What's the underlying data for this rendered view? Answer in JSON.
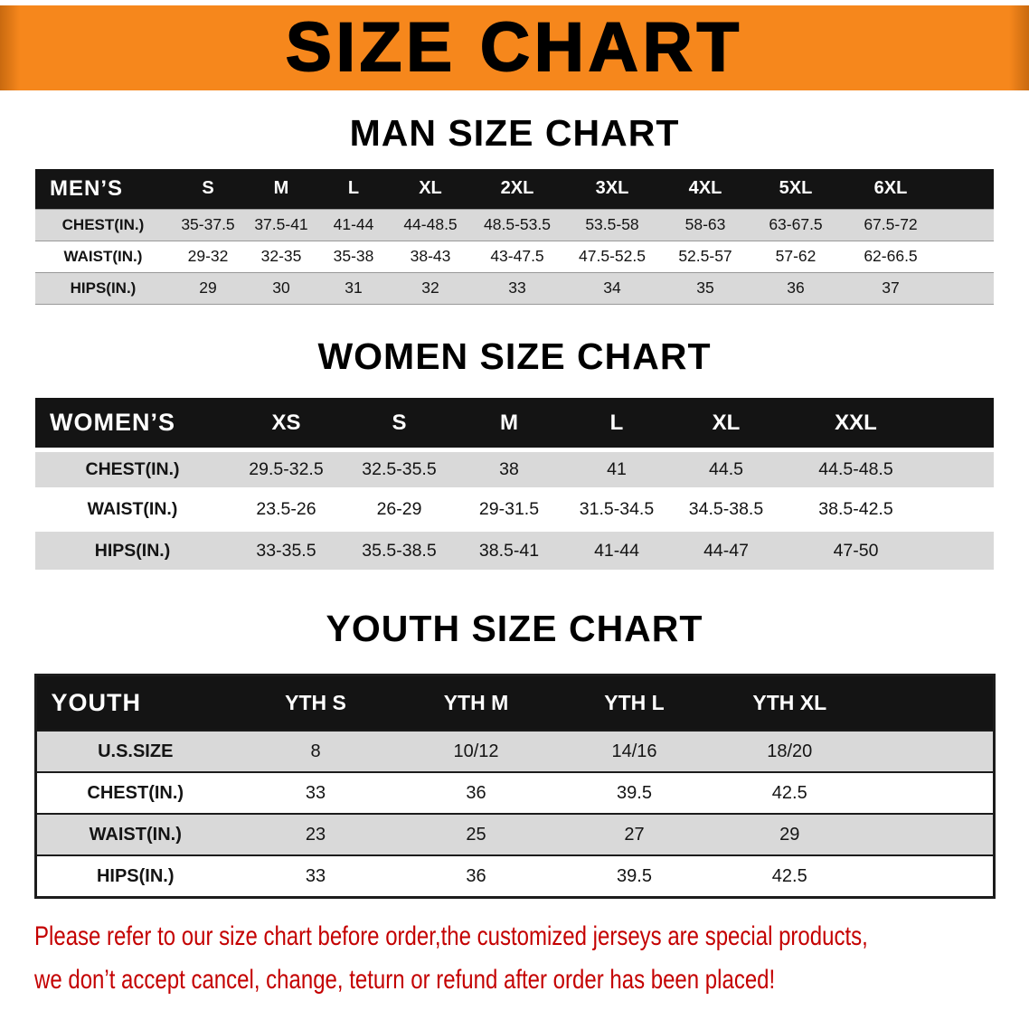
{
  "banner": {
    "title": "SIZE CHART"
  },
  "colors": {
    "banner_bg": "#F6871C",
    "header_bg": "#141414",
    "row_gray": "#D9D9D9",
    "disclaimer_red": "#C40000"
  },
  "tables": {
    "men": {
      "title": "MAN SIZE CHART",
      "header": [
        "MEN’S",
        "S",
        "M",
        "L",
        "XL",
        "2XL",
        "3XL",
        "4XL",
        "5XL",
        "6XL"
      ],
      "rows": [
        [
          "CHEST(IN.)",
          "35-37.5",
          "37.5-41",
          "41-44",
          "44-48.5",
          "48.5-53.5",
          "53.5-58",
          "58-63",
          "63-67.5",
          "67.5-72"
        ],
        [
          "WAIST(IN.)",
          "29-32",
          "32-35",
          "35-38",
          "38-43",
          "43-47.5",
          "47.5-52.5",
          "52.5-57",
          "57-62",
          "62-66.5"
        ],
        [
          "HIPS(IN.)",
          "29",
          "30",
          "31",
          "32",
          "33",
          "34",
          "35",
          "36",
          "37"
        ]
      ]
    },
    "women": {
      "title": "WOMEN SIZE CHART",
      "header": [
        "WOMEN’S",
        "XS",
        "S",
        "M",
        "L",
        "XL",
        "XXL"
      ],
      "rows": [
        [
          "CHEST(IN.)",
          "29.5-32.5",
          "32.5-35.5",
          "38",
          "41",
          "44.5",
          "44.5-48.5"
        ],
        [
          "WAIST(IN.)",
          "23.5-26",
          "26-29",
          "29-31.5",
          "31.5-34.5",
          "34.5-38.5",
          "38.5-42.5"
        ],
        [
          "HIPS(IN.)",
          "33-35.5",
          "35.5-38.5",
          "38.5-41",
          "41-44",
          "44-47",
          "47-50"
        ]
      ]
    },
    "youth": {
      "title": "YOUTH SIZE CHART",
      "header": [
        "YOUTH",
        "YTH S",
        "YTH M",
        "YTH L",
        "YTH XL"
      ],
      "rows": [
        [
          "U.S.SIZE",
          "8",
          "10/12",
          "14/16",
          "18/20"
        ],
        [
          "CHEST(IN.)",
          "33",
          "36",
          "39.5",
          "42.5"
        ],
        [
          "WAIST(IN.)",
          "23",
          "25",
          "27",
          "29"
        ],
        [
          "HIPS(IN.)",
          "33",
          "36",
          "39.5",
          "42.5"
        ]
      ]
    }
  },
  "disclaimer": {
    "line1": "Please refer to our size chart before order,the customized jerseys are special products,",
    "line2": "we don’t accept cancel, change, teturn or refund after order has been placed!"
  }
}
